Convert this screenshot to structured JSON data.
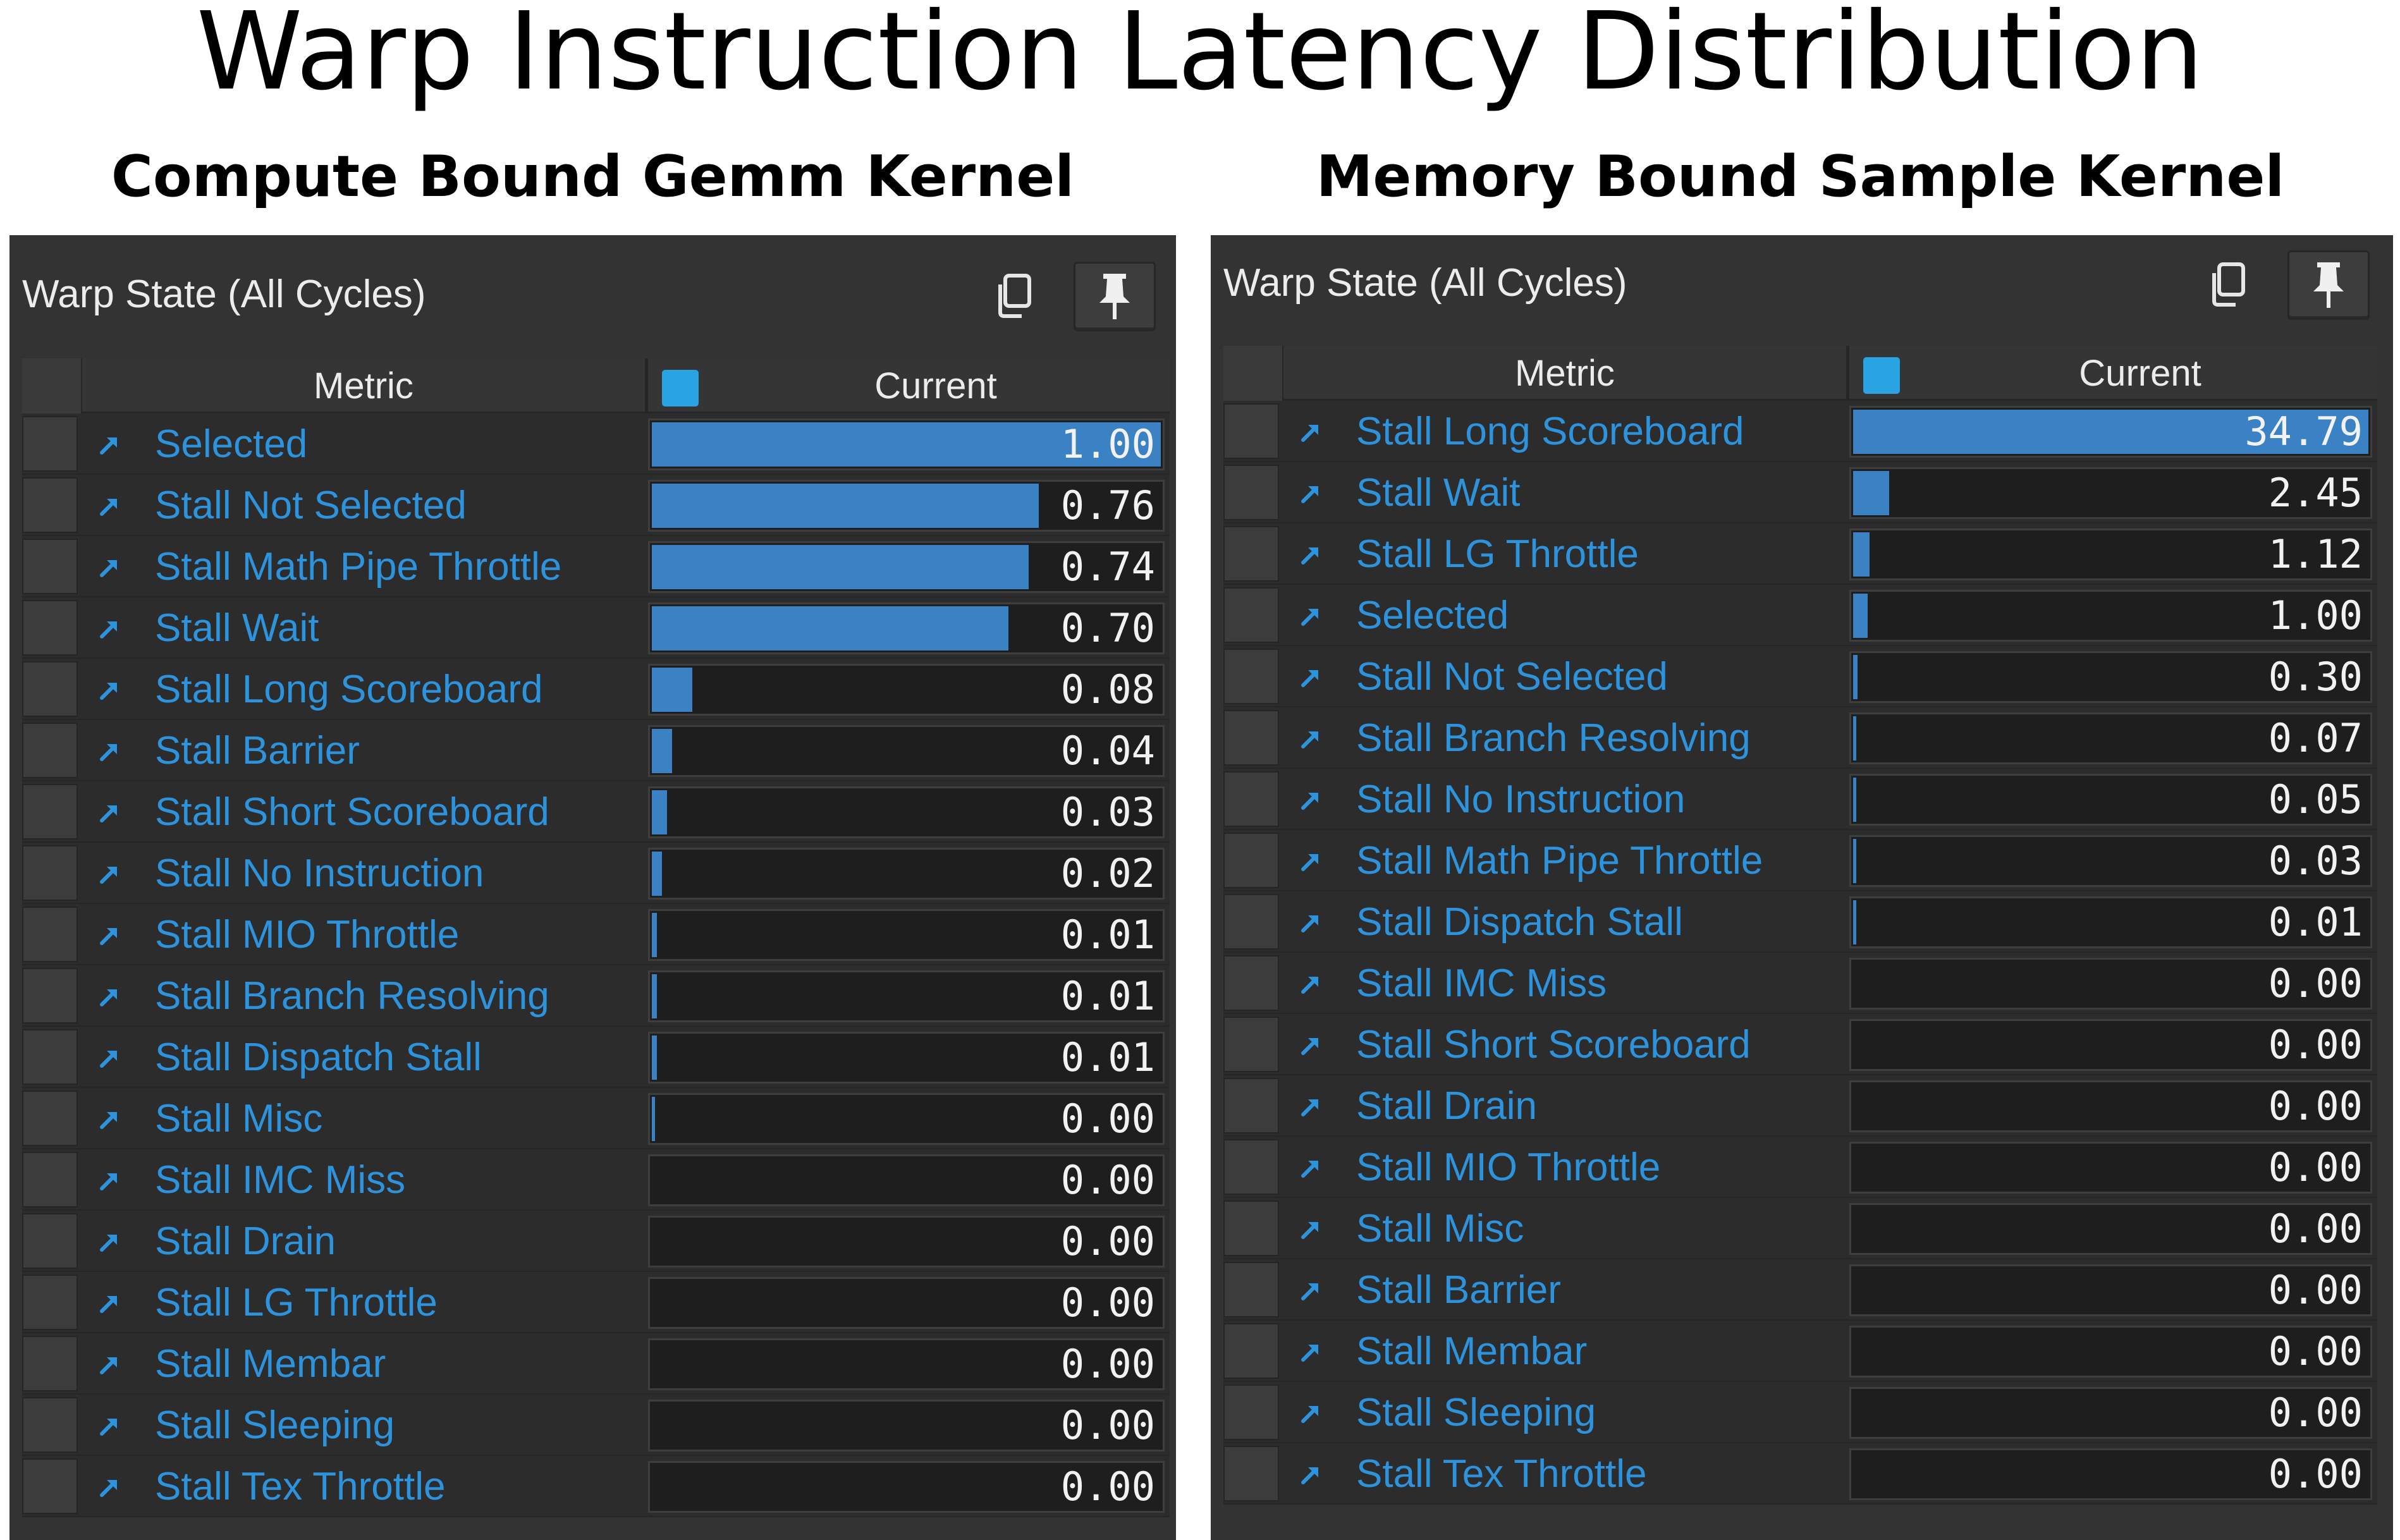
{
  "title": "Warp Instruction Latency Distribution",
  "panels": [
    {
      "subtitle": "Compute Bound Gemm Kernel",
      "window_title": "Warp State (All Cycles)",
      "copy_icon": "copy-icon",
      "pin_icon": "pin-icon",
      "columns": {
        "metric": "Metric",
        "current": "Current"
      },
      "series_color": "#2aa3e3",
      "bar_color": "#3a82c4",
      "link_color": "#2d93dc",
      "max": 1.0,
      "rows": [
        {
          "label": "Selected",
          "value": "1.00",
          "fill": 1.0
        },
        {
          "label": "Stall Not Selected",
          "value": "0.76",
          "fill": 0.76
        },
        {
          "label": "Stall Math Pipe Throttle",
          "value": "0.74",
          "fill": 0.74
        },
        {
          "label": "Stall Wait",
          "value": "0.70",
          "fill": 0.7
        },
        {
          "label": "Stall Long Scoreboard",
          "value": "0.08",
          "fill": 0.08
        },
        {
          "label": "Stall Barrier",
          "value": "0.04",
          "fill": 0.04
        },
        {
          "label": "Stall Short Scoreboard",
          "value": "0.03",
          "fill": 0.03
        },
        {
          "label": "Stall No Instruction",
          "value": "0.02",
          "fill": 0.02
        },
        {
          "label": "Stall MIO Throttle",
          "value": "0.01",
          "fill": 0.01
        },
        {
          "label": "Stall Branch Resolving",
          "value": "0.01",
          "fill": 0.01
        },
        {
          "label": "Stall Dispatch Stall",
          "value": "0.01",
          "fill": 0.01
        },
        {
          "label": "Stall Misc",
          "value": "0.00",
          "fill": 0.004
        },
        {
          "label": "Stall IMC Miss",
          "value": "0.00",
          "fill": 0.0
        },
        {
          "label": "Stall Drain",
          "value": "0.00",
          "fill": 0.0
        },
        {
          "label": "Stall LG Throttle",
          "value": "0.00",
          "fill": 0.0
        },
        {
          "label": "Stall Membar",
          "value": "0.00",
          "fill": 0.0
        },
        {
          "label": "Stall Sleeping",
          "value": "0.00",
          "fill": 0.0
        },
        {
          "label": "Stall Tex Throttle",
          "value": "0.00",
          "fill": 0.0
        }
      ]
    },
    {
      "subtitle": "Memory Bound Sample Kernel",
      "window_title": "Warp State (All Cycles)",
      "copy_icon": "copy-icon",
      "pin_icon": "pin-icon",
      "columns": {
        "metric": "Metric",
        "current": "Current"
      },
      "series_color": "#2aa3e3",
      "bar_color": "#3a82c4",
      "link_color": "#2d93dc",
      "max": 34.79,
      "rows": [
        {
          "label": "Stall Long Scoreboard",
          "value": "34.79",
          "fill": 34.79
        },
        {
          "label": "Stall Wait",
          "value": "2.45",
          "fill": 2.45
        },
        {
          "label": "Stall LG Throttle",
          "value": "1.12",
          "fill": 1.12
        },
        {
          "label": "Selected",
          "value": "1.00",
          "fill": 1.0
        },
        {
          "label": "Stall Not Selected",
          "value": "0.30",
          "fill": 0.3
        },
        {
          "label": "Stall Branch Resolving",
          "value": "0.07",
          "fill": 0.07
        },
        {
          "label": "Stall No Instruction",
          "value": "0.05",
          "fill": 0.05
        },
        {
          "label": "Stall Math Pipe Throttle",
          "value": "0.03",
          "fill": 0.03
        },
        {
          "label": "Stall Dispatch Stall",
          "value": "0.01",
          "fill": 0.01
        },
        {
          "label": "Stall IMC Miss",
          "value": "0.00",
          "fill": 0.0
        },
        {
          "label": "Stall Short Scoreboard",
          "value": "0.00",
          "fill": 0.0
        },
        {
          "label": "Stall Drain",
          "value": "0.00",
          "fill": 0.0
        },
        {
          "label": "Stall MIO Throttle",
          "value": "0.00",
          "fill": 0.0
        },
        {
          "label": "Stall Misc",
          "value": "0.00",
          "fill": 0.0
        },
        {
          "label": "Stall Barrier",
          "value": "0.00",
          "fill": 0.0
        },
        {
          "label": "Stall Membar",
          "value": "0.00",
          "fill": 0.0
        },
        {
          "label": "Stall Sleeping",
          "value": "0.00",
          "fill": 0.0
        },
        {
          "label": "Stall Tex Throttle",
          "value": "0.00",
          "fill": 0.0
        }
      ]
    }
  ]
}
